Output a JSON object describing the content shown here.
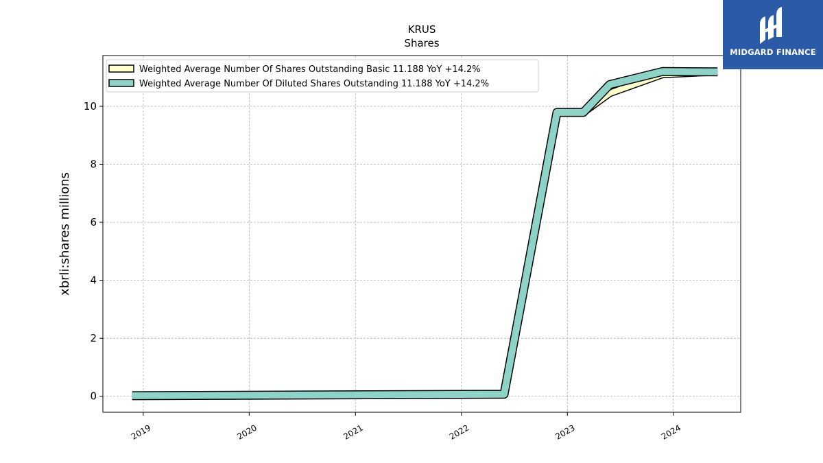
{
  "chart_data": {
    "type": "line",
    "title": "KRUS",
    "subtitle": "Shares",
    "xlabel": "",
    "ylabel": "xbrli:shares millions",
    "xlim": [
      "2018-08-15",
      "2024-08-20"
    ],
    "ylim": [
      -0.55,
      11.75
    ],
    "yticks": [
      0,
      2,
      4,
      6,
      8,
      10
    ],
    "xticks": [
      "2019",
      "2020",
      "2021",
      "2022",
      "2023",
      "2024"
    ],
    "xtick_dates": [
      "2019-01-01",
      "2020-01-01",
      "2021-01-01",
      "2022-01-01",
      "2023-01-01",
      "2024-01-01"
    ],
    "grid": true,
    "legend_position": "top-left",
    "series": [
      {
        "name": "Weighted Average Number Of Shares Outstanding Basic  11.188 YoY +14.2%",
        "color": "#ffffcc",
        "points": [
          [
            "2018-11-24",
            0.02
          ],
          [
            "2022-05-28",
            0.07
          ],
          [
            "2022-11-26",
            9.79
          ],
          [
            "2023-02-25",
            9.79
          ],
          [
            "2023-05-27",
            10.45
          ],
          [
            "2023-11-25",
            11.1
          ],
          [
            "2024-06-01",
            11.188
          ]
        ]
      },
      {
        "name": "Weighted Average Number Of Diluted Shares Outstanding  11.188 YoY +14.2%",
        "color": "#8dd3c7",
        "points": [
          [
            "2018-11-24",
            0.02
          ],
          [
            "2022-05-28",
            0.07
          ],
          [
            "2022-11-26",
            9.79
          ],
          [
            "2023-02-25",
            9.79
          ],
          [
            "2023-05-27",
            10.75
          ],
          [
            "2023-11-25",
            11.2
          ],
          [
            "2024-06-01",
            11.188
          ]
        ]
      }
    ]
  },
  "logo": {
    "text": "MIDGARD FINANCE"
  }
}
